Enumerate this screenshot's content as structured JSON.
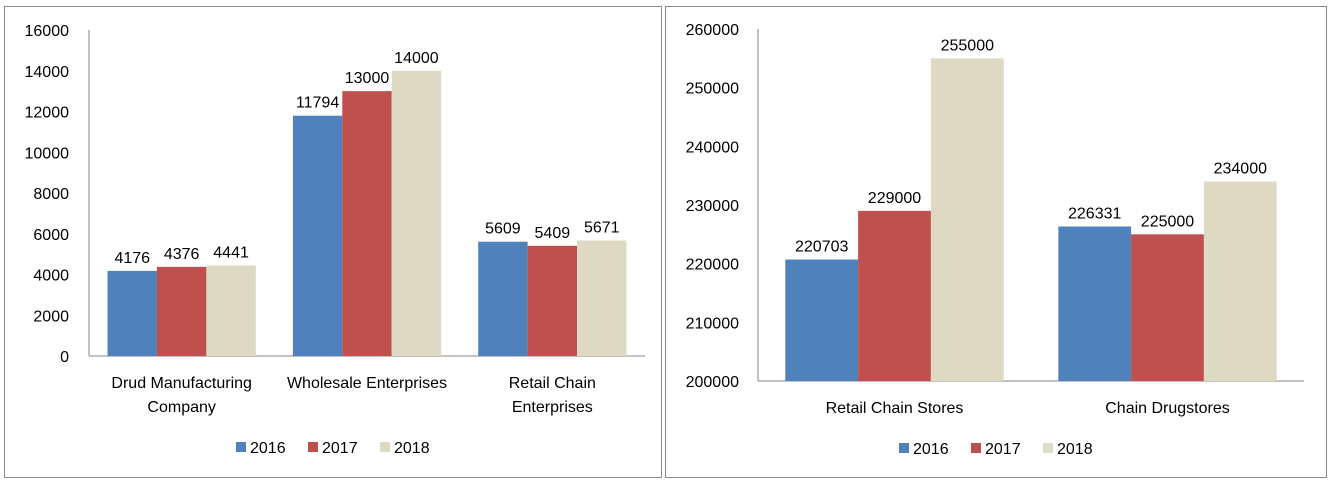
{
  "chart_data": [
    {
      "type": "bar",
      "title": "",
      "xlabel": "",
      "ylabel": "",
      "categories": [
        [
          "Drud Manufacturing",
          "Company"
        ],
        [
          "Wholesale Enterprises"
        ],
        [
          "Retail Chain",
          "Enterprises"
        ]
      ],
      "ylim": [
        0,
        16000
      ],
      "yticks": [
        0,
        2000,
        4000,
        6000,
        8000,
        10000,
        12000,
        14000,
        16000
      ],
      "series": [
        {
          "name": "2016",
          "color": "#4f81bd",
          "values": [
            4176,
            11794,
            5609
          ]
        },
        {
          "name": "2017",
          "color": "#c0504d",
          "values": [
            4376,
            13000,
            5409
          ]
        },
        {
          "name": "2018",
          "color": "#ddd9c3",
          "values": [
            4441,
            14000,
            5671
          ]
        }
      ],
      "grid": false,
      "legend": "bottom"
    },
    {
      "type": "bar",
      "title": "",
      "xlabel": "",
      "ylabel": "",
      "categories": [
        [
          "Retail Chain Stores"
        ],
        [
          "Chain Drugstores"
        ]
      ],
      "ylim": [
        200000,
        260000
      ],
      "yticks": [
        200000,
        210000,
        220000,
        230000,
        240000,
        250000,
        260000
      ],
      "series": [
        {
          "name": "2016",
          "color": "#4f81bd",
          "values": [
            220703,
            226331
          ]
        },
        {
          "name": "2017",
          "color": "#c0504d",
          "values": [
            229000,
            225000
          ]
        },
        {
          "name": "2018",
          "color": "#ddd9c3",
          "values": [
            255000,
            234000
          ]
        }
      ],
      "grid": false,
      "legend": "bottom"
    }
  ]
}
